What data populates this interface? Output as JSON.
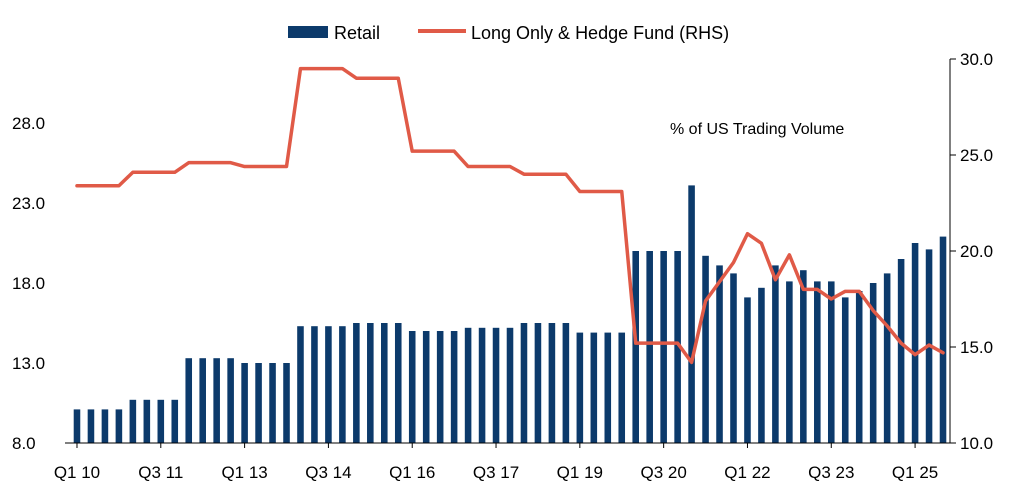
{
  "chart_data": {
    "type": "bar-line-combo",
    "title": "",
    "annotation": "% of US Trading Volume",
    "legend": {
      "bar_label": "Retail",
      "line_label": "Long Only & Hedge Fund (RHS)",
      "placement": "top-center"
    },
    "colors": {
      "bar": "#0c3a6b",
      "line": "#e05a47",
      "axis": "#000000"
    },
    "left_axis": {
      "min": 8,
      "max": 32,
      "ticks": [
        "8.0",
        "13.0",
        "18.0",
        "23.0",
        "28.0"
      ],
      "tick_values": [
        8,
        13,
        18,
        23,
        28
      ]
    },
    "right_axis": {
      "min": 10,
      "max": 30,
      "ticks": [
        "10.0",
        "15.0",
        "20.0",
        "25.0",
        "30.0"
      ],
      "tick_values": [
        10,
        15,
        20,
        25,
        30
      ]
    },
    "x_tick_labels": [
      {
        "label": "Q1 10",
        "index": 0
      },
      {
        "label": "Q3 11",
        "index": 6
      },
      {
        "label": "Q1 13",
        "index": 12
      },
      {
        "label": "Q3 14",
        "index": 18
      },
      {
        "label": "Q1 16",
        "index": 24
      },
      {
        "label": "Q3 17",
        "index": 30
      },
      {
        "label": "Q1 19",
        "index": 36
      },
      {
        "label": "Q3 20",
        "index": 42
      },
      {
        "label": "Q1 22",
        "index": 48
      },
      {
        "label": "Q3 23",
        "index": 54
      },
      {
        "label": "Q1 25",
        "index": 60
      }
    ],
    "series": [
      {
        "name": "Retail",
        "type": "bar",
        "axis": "left",
        "values": [
          10.1,
          10.1,
          10.1,
          10.1,
          10.7,
          10.7,
          10.7,
          10.7,
          13.3,
          13.3,
          13.3,
          13.3,
          13.0,
          13.0,
          13.0,
          13.0,
          15.3,
          15.3,
          15.3,
          15.3,
          15.5,
          15.5,
          15.5,
          15.5,
          15.0,
          15.0,
          15.0,
          15.0,
          15.2,
          15.2,
          15.2,
          15.2,
          15.5,
          15.5,
          15.5,
          15.5,
          14.9,
          14.9,
          14.9,
          14.9,
          20.0,
          20.0,
          20.0,
          20.0,
          24.1,
          19.7,
          19.1,
          18.6,
          17.1,
          17.7,
          19.1,
          18.1,
          18.8,
          18.1,
          18.1,
          17.1,
          17.5,
          18.0,
          18.6,
          19.5,
          20.5,
          20.1,
          20.9
        ]
      },
      {
        "name": "Long Only & Hedge Fund (RHS)",
        "type": "line",
        "axis": "right",
        "values": [
          23.4,
          23.4,
          23.4,
          23.4,
          24.1,
          24.1,
          24.1,
          24.1,
          24.6,
          24.6,
          24.6,
          24.6,
          24.4,
          24.4,
          24.4,
          24.4,
          29.5,
          29.5,
          29.5,
          29.5,
          29.0,
          29.0,
          29.0,
          29.0,
          25.2,
          25.2,
          25.2,
          25.2,
          24.4,
          24.4,
          24.4,
          24.4,
          24.0,
          24.0,
          24.0,
          24.0,
          23.1,
          23.1,
          23.1,
          23.1,
          15.2,
          15.2,
          15.2,
          15.2,
          14.2,
          17.4,
          18.4,
          19.4,
          20.9,
          20.4,
          18.5,
          19.8,
          18.0,
          18.0,
          17.5,
          17.9,
          17.9,
          16.9,
          16.1,
          15.2,
          14.6,
          15.1,
          14.7
        ]
      }
    ]
  }
}
